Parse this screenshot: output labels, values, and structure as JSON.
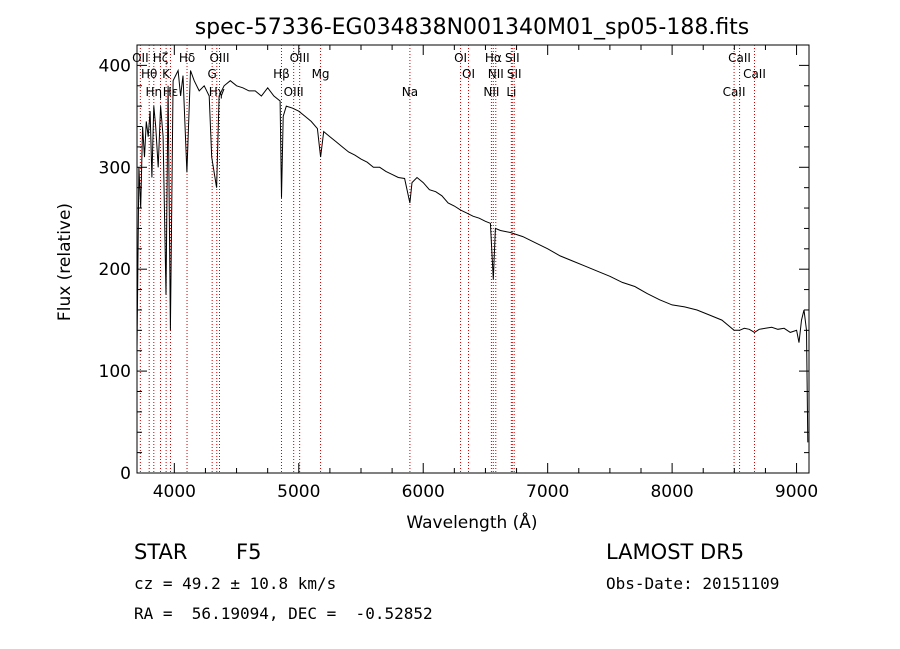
{
  "chart_data": {
    "type": "line",
    "title": "spec-57336-EG034838N001340M01_sp05-188.fits",
    "xlabel": "Wavelength (Å)",
    "ylabel": "Flux (relative)",
    "xlim": [
      3700,
      9100
    ],
    "ylim": [
      0,
      420
    ],
    "x_ticks": [
      4000,
      5000,
      6000,
      7000,
      8000,
      9000
    ],
    "y_ticks": [
      0,
      100,
      200,
      300,
      400
    ],
    "grid": false,
    "series": [
      {
        "x": [
          3700,
          3715,
          3730,
          3745,
          3760,
          3775,
          3790,
          3805,
          3820,
          3835,
          3850,
          3870,
          3890,
          3910,
          3933,
          3950,
          3968,
          3990,
          4010,
          4030,
          4050,
          4070,
          4101,
          4130,
          4160,
          4200,
          4240,
          4280,
          4300,
          4340,
          4360,
          4400,
          4450,
          4500,
          4550,
          4600,
          4650,
          4700,
          4750,
          4800,
          4850,
          4861,
          4875,
          4900,
          4950,
          5000,
          5050,
          5100,
          5150,
          5175,
          5200,
          5250,
          5300,
          5350,
          5400,
          5450,
          5500,
          5550,
          5600,
          5650,
          5700,
          5750,
          5800,
          5850,
          5893,
          5910,
          5950,
          6000,
          6050,
          6100,
          6150,
          6200,
          6250,
          6300,
          6350,
          6400,
          6450,
          6500,
          6540,
          6563,
          6580,
          6620,
          6700,
          6800,
          6900,
          7000,
          7100,
          7200,
          7300,
          7400,
          7500,
          7600,
          7700,
          7800,
          7900,
          8000,
          8100,
          8200,
          8300,
          8400,
          8498,
          8542,
          8580,
          8620,
          8662,
          8700,
          8750,
          8800,
          8850,
          8900,
          8950,
          9000,
          9020,
          9040,
          9060,
          9080,
          9090
        ],
        "y": [
          120,
          300,
          260,
          340,
          310,
          345,
          330,
          355,
          290,
          360,
          340,
          300,
          360,
          330,
          175,
          380,
          140,
          385,
          390,
          395,
          370,
          390,
          295,
          395,
          385,
          375,
          380,
          370,
          310,
          280,
          370,
          380,
          385,
          380,
          378,
          375,
          375,
          370,
          378,
          370,
          365,
          270,
          350,
          360,
          358,
          355,
          350,
          345,
          338,
          310,
          335,
          330,
          325,
          320,
          315,
          312,
          308,
          305,
          300,
          300,
          296,
          293,
          290,
          289,
          265,
          285,
          290,
          285,
          278,
          276,
          272,
          265,
          262,
          258,
          255,
          252,
          250,
          247,
          245,
          190,
          240,
          238,
          236,
          232,
          226,
          220,
          213,
          208,
          203,
          198,
          193,
          187,
          183,
          176,
          170,
          165,
          163,
          160,
          155,
          150,
          140,
          140,
          142,
          141,
          138,
          141,
          142,
          143,
          141,
          142,
          138,
          140,
          128,
          150,
          160,
          140,
          30
        ]
      }
    ],
    "line_markers": [
      {
        "x": 3727,
        "labels": [
          "OII"
        ]
      },
      {
        "x": 3798,
        "labels": [
          "Hθ"
        ]
      },
      {
        "x": 3835,
        "labels": [
          "Hη"
        ]
      },
      {
        "x": 3889,
        "labels": [
          "Hζ"
        ]
      },
      {
        "x": 3934,
        "labels": [
          "K"
        ]
      },
      {
        "x": 3969,
        "labels": [
          "Hε"
        ]
      },
      {
        "x": 4102,
        "labels": [
          "Hδ"
        ]
      },
      {
        "x": 4304,
        "labels": [
          "G"
        ]
      },
      {
        "x": 4341,
        "labels": [
          "Hγ"
        ]
      },
      {
        "x": 4363,
        "labels": [
          "OIII"
        ]
      },
      {
        "x": 4861,
        "labels": [
          "Hβ"
        ]
      },
      {
        "x": 4959,
        "labels": [
          "OIII"
        ]
      },
      {
        "x": 5007,
        "labels": [
          "OIII"
        ]
      },
      {
        "x": 5175,
        "labels": [
          "Mg"
        ]
      },
      {
        "x": 5893,
        "labels": [
          "Na"
        ]
      },
      {
        "x": 6300,
        "labels": [
          "OI"
        ]
      },
      {
        "x": 6364,
        "labels": [
          "OI"
        ]
      },
      {
        "x": 6548,
        "labels": [
          "NII"
        ]
      },
      {
        "x": 6563,
        "labels": [
          "Hα"
        ]
      },
      {
        "x": 6583,
        "labels": [
          "NII"
        ]
      },
      {
        "x": 6708,
        "labels": [
          "Li"
        ]
      },
      {
        "x": 6716,
        "labels": [
          "SII"
        ]
      },
      {
        "x": 6731,
        "labels": [
          "SII"
        ]
      },
      {
        "x": 8498,
        "labels": [
          "CaII"
        ]
      },
      {
        "x": 8542,
        "labels": [
          "CaII"
        ]
      },
      {
        "x": 8662,
        "labels": [
          "CaII"
        ]
      }
    ]
  },
  "info": {
    "class": "STAR",
    "subclass": "F5",
    "survey": "LAMOST DR5",
    "redshift": "cz = 49.2 ± 10.8 km/s",
    "obs_date": "Obs-Date: 20151109",
    "coords": "RA =  56.19094, DEC =  -0.52852"
  },
  "colors": {
    "spectrum": "#000000",
    "marker": "#cc0000",
    "background": "#ffffff"
  }
}
